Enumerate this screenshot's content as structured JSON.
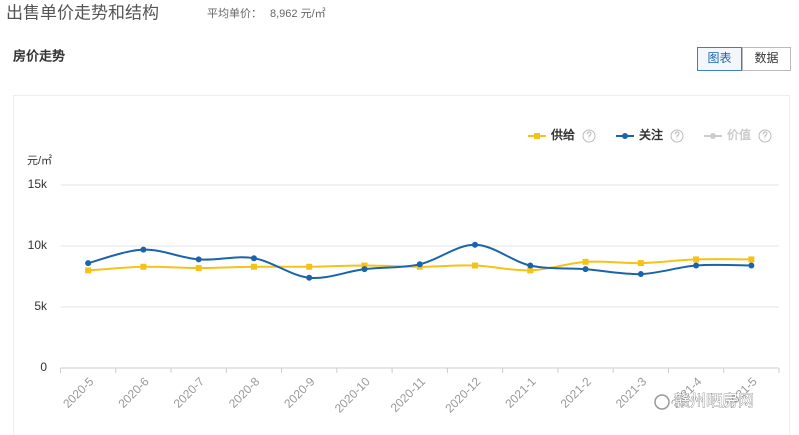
{
  "header": {
    "title": "出售单价走势和结构",
    "avg_label": "平均单价：",
    "avg_value": "8,962 元/㎡"
  },
  "section": {
    "title": "房价走势",
    "tabs": [
      "图表",
      "数据"
    ]
  },
  "watermark": "赣州晒房网",
  "chart_data": {
    "type": "line",
    "y_label": "元/㎡",
    "categories": [
      "2020-5",
      "2020-6",
      "2020-7",
      "2020-8",
      "2020-9",
      "2020-10",
      "2020-11",
      "2020-12",
      "2021-1",
      "2021-2",
      "2021-3",
      "2021-4",
      "2021-5"
    ],
    "series": [
      {
        "name": "供给",
        "color": "#f5c218",
        "marker": "square",
        "values": [
          8000,
          8300,
          8200,
          8300,
          8300,
          8400,
          8300,
          8400,
          8000,
          8700,
          8600,
          8900,
          8900
        ]
      },
      {
        "name": "关注",
        "color": "#1a64ad",
        "marker": "circle",
        "values": [
          8600,
          9700,
          8900,
          9000,
          7400,
          8100,
          8500,
          10100,
          8400,
          8100,
          7700,
          8400,
          8400
        ]
      },
      {
        "name": "价值",
        "color": "#cccccc",
        "marker": "circle",
        "values": [
          null,
          null,
          null,
          null,
          null,
          null,
          null,
          null,
          null,
          null,
          null,
          null,
          null
        ]
      }
    ],
    "ylim": [
      0,
      15000
    ],
    "yticks": [
      0,
      {
        "value": 5000,
        "label": "5k"
      },
      {
        "value": 10000,
        "label": "10k"
      },
      {
        "value": 15000,
        "label": "15k"
      }
    ],
    "grid": true,
    "legend": "top-right",
    "smooth": true
  }
}
